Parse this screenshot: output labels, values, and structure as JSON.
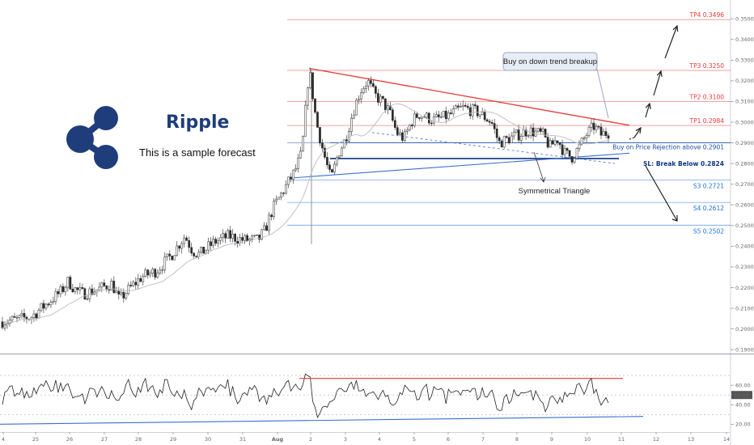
{
  "chart_data": {
    "type": "candlestick",
    "brand": "Ripple",
    "subtitle": "This is a sample forecast",
    "annotations": {
      "callout": "Buy on down trend breakup",
      "pattern": "Symmetrical Triangle"
    },
    "x_ticks": [
      "4",
      "25",
      "26",
      "27",
      "28",
      "29",
      "30",
      "31",
      "Aug",
      "2",
      "3",
      "4",
      "5",
      "6",
      "7",
      "8",
      "9",
      "10",
      "11",
      "12",
      "13",
      "14"
    ],
    "price_axis": {
      "ylim": [
        0.1885,
        0.3575
      ],
      "ticks": [
        "0.35000",
        "0.34000",
        "0.33000",
        "0.32000",
        "0.31000",
        "0.30000",
        "0.29000",
        "0.28000",
        "0.27000",
        "0.26000",
        "0.25000",
        "0.24000",
        "0.23000",
        "0.22000",
        "0.21000",
        "0.20000",
        "0.19000"
      ],
      "tick_values": [
        0.35,
        0.34,
        0.33,
        0.32,
        0.31,
        0.3,
        0.29,
        0.28,
        0.27,
        0.26,
        0.25,
        0.24,
        0.23,
        0.22,
        0.21,
        0.2,
        0.19
      ]
    },
    "levels": [
      {
        "label": "TP4 0.3496",
        "value": 0.3496,
        "color": "#e53935"
      },
      {
        "label": "TP3 0.3250",
        "value": 0.325,
        "color": "#e53935"
      },
      {
        "label": "TP2 0.3100",
        "value": 0.31,
        "color": "#e53935"
      },
      {
        "label": "TP1 0.2984",
        "value": 0.2984,
        "color": "#e53935"
      },
      {
        "label": "Buy on Price Rejection above 0.2901",
        "value": 0.2901,
        "color": "#1a4fa3"
      },
      {
        "label": "SL: Break Below 0.2824",
        "value": 0.2824,
        "color": "#0d3580"
      },
      {
        "label": "S3 0.2721",
        "value": 0.2721,
        "color": "#1e6fd9"
      },
      {
        "label": "S4 0.2612",
        "value": 0.2612,
        "color": "#1e6fd9"
      },
      {
        "label": "S5 0.2502",
        "value": 0.2502,
        "color": "#1e6fd9"
      }
    ],
    "price_series": {
      "name": "",
      "x_start": 0,
      "x_end": 83,
      "points": [
        [
          0,
          0.2035
        ],
        [
          2,
          0.2045
        ],
        [
          4,
          0.206
        ],
        [
          6,
          0.212
        ],
        [
          8,
          0.218
        ],
        [
          9,
          0.223
        ],
        [
          10,
          0.219
        ],
        [
          11,
          0.217
        ],
        [
          13,
          0.219
        ],
        [
          15,
          0.222
        ],
        [
          16,
          0.214
        ],
        [
          17,
          0.218
        ],
        [
          19,
          0.225
        ],
        [
          21,
          0.228
        ],
        [
          23,
          0.235
        ],
        [
          24,
          0.24
        ],
        [
          25,
          0.245
        ],
        [
          26,
          0.238
        ],
        [
          27,
          0.236
        ],
        [
          29,
          0.242
        ],
        [
          31,
          0.245
        ],
        [
          33,
          0.243
        ],
        [
          35,
          0.243
        ],
        [
          36,
          0.248
        ],
        [
          37,
          0.258
        ],
        [
          39,
          0.27
        ],
        [
          40,
          0.276
        ],
        [
          41,
          0.285
        ],
        [
          42,
          0.326
        ],
        [
          43,
          0.3
        ],
        [
          44,
          0.285
        ],
        [
          45,
          0.272
        ],
        [
          46,
          0.285
        ],
        [
          47,
          0.292
        ],
        [
          48,
          0.305
        ],
        [
          49,
          0.315
        ],
        [
          50,
          0.32
        ],
        [
          51,
          0.313
        ],
        [
          52,
          0.31
        ],
        [
          53,
          0.305
        ],
        [
          54,
          0.295
        ],
        [
          55,
          0.292
        ],
        [
          56,
          0.3
        ],
        [
          57,
          0.304
        ],
        [
          59,
          0.301
        ],
        [
          61,
          0.303
        ],
        [
          63,
          0.307
        ],
        [
          65,
          0.305
        ],
        [
          67,
          0.3
        ],
        [
          68,
          0.29
        ],
        [
          70,
          0.293
        ],
        [
          72,
          0.296
        ],
        [
          74,
          0.294
        ],
        [
          75,
          0.288
        ],
        [
          76,
          0.292
        ],
        [
          77,
          0.285
        ],
        [
          78,
          0.283
        ],
        [
          79,
          0.288
        ],
        [
          80,
          0.294
        ],
        [
          81,
          0.298
        ],
        [
          82,
          0.294
        ],
        [
          83,
          0.295
        ]
      ]
    },
    "rsi": {
      "ticks": [
        "60.00",
        "40.00",
        "20.00"
      ],
      "tick_values": [
        60,
        40,
        20
      ],
      "current": "50.00",
      "current_value": 50,
      "ylim": [
        12,
        90
      ],
      "levels": [
        70,
        50,
        30
      ]
    }
  }
}
